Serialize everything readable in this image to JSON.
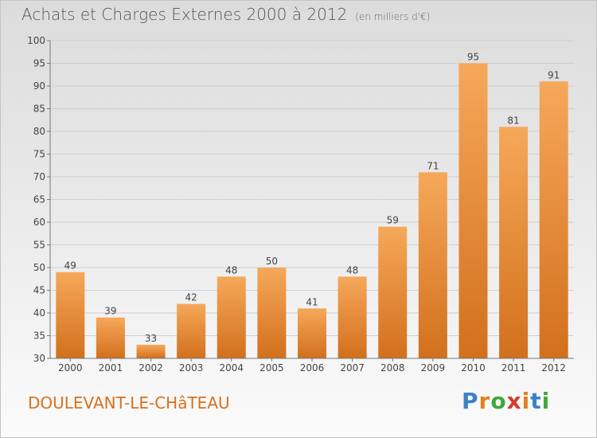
{
  "header": {
    "title": "Achats et Charges Externes 2000 à 2012",
    "unit": "(en milliers d'€)"
  },
  "footer": {
    "commune": "DOULEVANT-LE-CHâTEAU",
    "brand": "Proxiti",
    "brand_letters": [
      "P",
      "r",
      "o",
      "x",
      "i",
      "t",
      "i"
    ],
    "brand_colors": [
      "#3b82c4",
      "#e0801c",
      "#3fa83c",
      "#d63b2c",
      "#e0801c",
      "#3b82c4",
      "#3fa83c"
    ]
  },
  "colors": {
    "bar_top": "#f6a85a",
    "bar_bottom": "#d2701c",
    "grid": "#cfcfcf",
    "axis": "#777777",
    "text": "#444444"
  },
  "chart_data": {
    "type": "bar",
    "title": "Achats et Charges Externes 2000 à 2012",
    "xlabel": "",
    "ylabel": "",
    "categories": [
      "2000",
      "2001",
      "2002",
      "2003",
      "2004",
      "2005",
      "2006",
      "2007",
      "2008",
      "2009",
      "2010",
      "2011",
      "2012"
    ],
    "values": [
      49,
      39,
      33,
      42,
      48,
      50,
      41,
      48,
      59,
      71,
      95,
      81,
      91
    ],
    "ylim": [
      30,
      100
    ],
    "yticks": [
      30,
      35,
      40,
      45,
      50,
      55,
      60,
      65,
      70,
      75,
      80,
      85,
      90,
      95,
      100
    ],
    "grid": true,
    "data_labels": true
  }
}
